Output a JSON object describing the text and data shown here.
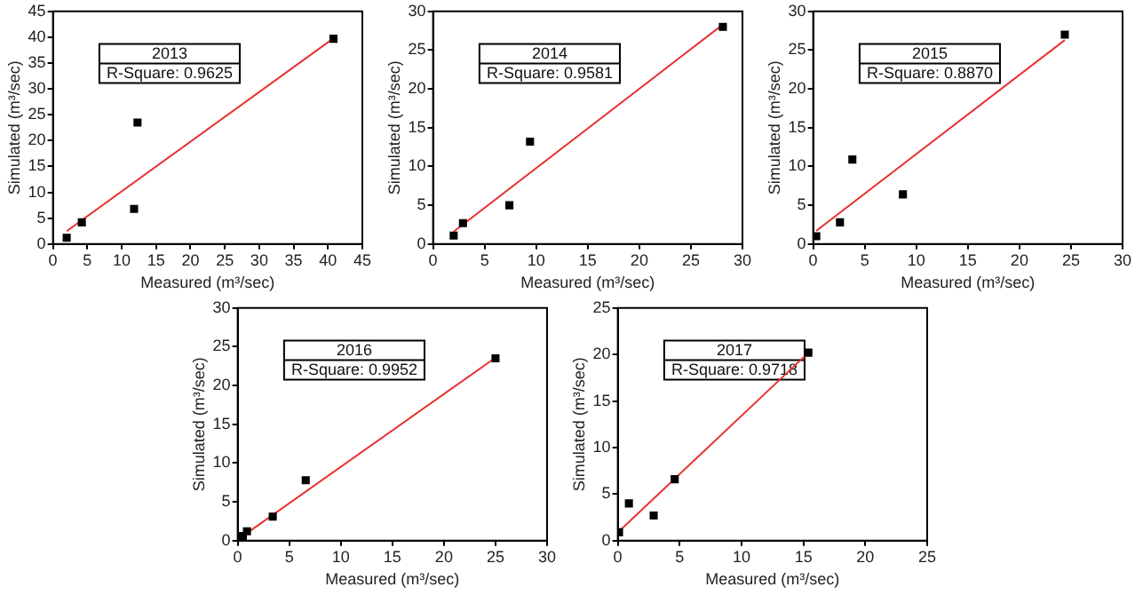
{
  "chart_data": [
    {
      "type": "scatter",
      "xlabel": "Measured (m³/sec)",
      "ylabel": "Simulated (m³/sec)",
      "annotations": [
        "2013",
        "R-Square: 0.9625"
      ],
      "xlim": [
        0,
        45
      ],
      "ylim": [
        0,
        45
      ],
      "xticks": [
        0,
        5,
        10,
        15,
        20,
        25,
        30,
        35,
        40,
        45
      ],
      "yticks": [
        0,
        5,
        10,
        15,
        20,
        25,
        30,
        35,
        40,
        45
      ],
      "grid": false,
      "legend": false,
      "series": [
        {
          "type": "scatter",
          "marker": "square",
          "color": "#000000",
          "x": [
            2,
            4.2,
            11.8,
            12.3,
            40.8
          ],
          "values": [
            1.2,
            4.2,
            6.8,
            23.5,
            39.7
          ]
        },
        {
          "type": "line",
          "marker": "none",
          "line_style": "solid",
          "color": "#e8322f",
          "x": [
            2,
            40.8
          ],
          "values": [
            2.5,
            39.8
          ]
        }
      ]
    },
    {
      "type": "scatter",
      "xlabel": "Measured (m³/sec)",
      "ylabel": "Simulated (m³/sec)",
      "annotations": [
        "2014",
        "R-Square: 0.9581"
      ],
      "xlim": [
        0,
        30
      ],
      "ylim": [
        0,
        30
      ],
      "xticks": [
        0,
        5,
        10,
        15,
        20,
        25,
        30
      ],
      "yticks": [
        0,
        5,
        10,
        15,
        20,
        25,
        30
      ],
      "grid": false,
      "legend": false,
      "series": [
        {
          "type": "scatter",
          "marker": "square",
          "color": "#000000",
          "x": [
            2,
            2.9,
            7.4,
            9.4,
            28.1
          ],
          "values": [
            1.1,
            2.7,
            5,
            13.2,
            28
          ]
        },
        {
          "type": "line",
          "marker": "none",
          "line_style": "solid",
          "color": "#e8322f",
          "x": [
            2,
            28.1
          ],
          "values": [
            1.6,
            28.3
          ]
        }
      ]
    },
    {
      "type": "scatter",
      "xlabel": "Measured (m³/sec)",
      "ylabel": "Simulated (m³/sec)",
      "annotations": [
        "2015",
        "R-Square: 0.8870"
      ],
      "xlim": [
        0,
        30
      ],
      "ylim": [
        0,
        30
      ],
      "xticks": [
        0,
        5,
        10,
        15,
        20,
        25,
        30
      ],
      "yticks": [
        0,
        5,
        10,
        15,
        20,
        25,
        30
      ],
      "grid": false,
      "legend": false,
      "series": [
        {
          "type": "scatter",
          "marker": "square",
          "color": "#000000",
          "x": [
            0.3,
            2.6,
            3.8,
            8.7,
            24.4
          ],
          "values": [
            1,
            2.8,
            10.9,
            6.4,
            27
          ]
        },
        {
          "type": "line",
          "marker": "none",
          "line_style": "solid",
          "color": "#e8322f",
          "x": [
            0.3,
            24.4
          ],
          "values": [
            1.7,
            26.3
          ]
        }
      ]
    },
    {
      "type": "scatter",
      "xlabel": "Measured (m³/sec)",
      "ylabel": "Simulated (m³/sec)",
      "annotations": [
        "2016",
        "R-Square: 0.9952"
      ],
      "xlim": [
        0,
        30
      ],
      "ylim": [
        0,
        30
      ],
      "xticks": [
        0,
        5,
        10,
        15,
        20,
        25,
        30
      ],
      "yticks": [
        0,
        5,
        10,
        15,
        20,
        25,
        30
      ],
      "grid": false,
      "legend": false,
      "series": [
        {
          "type": "scatter",
          "marker": "square",
          "color": "#000000",
          "x": [
            0.5,
            0.9,
            3.4,
            6.6,
            25
          ],
          "values": [
            0.6,
            1.2,
            3.1,
            7.8,
            23.5
          ]
        },
        {
          "type": "line",
          "marker": "none",
          "line_style": "solid",
          "color": "#e8322f",
          "x": [
            0.5,
            25
          ],
          "values": [
            0.6,
            23.6
          ]
        }
      ]
    },
    {
      "type": "scatter",
      "xlabel": "Measured (m³/sec)",
      "ylabel": "Simulated (m³/sec)",
      "annotations": [
        "2017",
        "R-Square: 0.9718"
      ],
      "xlim": [
        0,
        25
      ],
      "ylim": [
        0,
        25
      ],
      "xticks": [
        0,
        5,
        10,
        15,
        20,
        25
      ],
      "yticks": [
        0,
        5,
        10,
        15,
        20,
        25
      ],
      "grid": false,
      "legend": false,
      "series": [
        {
          "type": "scatter",
          "marker": "square",
          "color": "#000000",
          "x": [
            0.1,
            0.9,
            2.9,
            4.6,
            15.4
          ],
          "values": [
            0.9,
            4,
            2.7,
            6.6,
            20.2
          ]
        },
        {
          "type": "line",
          "marker": "none",
          "line_style": "solid",
          "color": "#e8322f",
          "x": [
            0.1,
            15.4
          ],
          "values": [
            1,
            20.2
          ]
        }
      ]
    }
  ]
}
